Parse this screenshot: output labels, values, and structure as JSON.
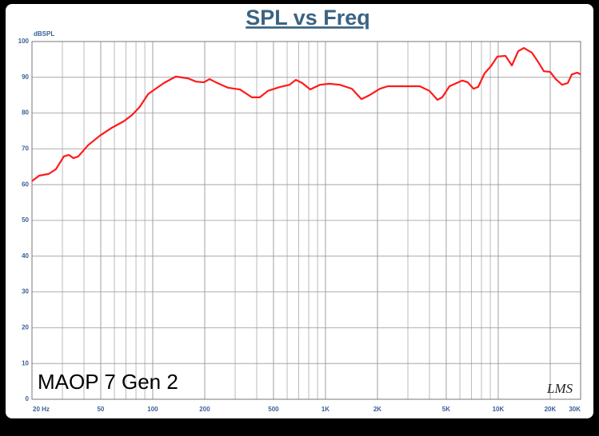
{
  "chart_data": {
    "type": "line",
    "title": "SPL vs Freq",
    "y_label": "dBSPL",
    "annotation": "MAOP 7 Gen 2",
    "logo": "LMS",
    "log_x": true,
    "grid": true,
    "color": "#ff1a1a",
    "x": [
      20,
      22,
      25,
      27.5,
      30.6,
      32.7,
      34.8,
      37.1,
      42.2,
      49.5,
      58,
      68,
      76,
      84,
      94,
      104,
      116,
      136,
      160,
      178,
      198,
      213,
      232,
      272,
      320,
      375,
      417,
      464,
      545,
      619,
      674,
      734,
      816,
      928,
      1055,
      1212,
      1422,
      1615,
      1798,
      2064,
      2296,
      2698,
      3516,
      4000,
      4446,
      4744,
      5224,
      6191,
      6666,
      7191,
      7660,
      8340,
      9080,
      9890,
      11020,
      12000,
      13060,
      14080,
      15660,
      16880,
      18380,
      20000,
      21540,
      23450,
      25290,
      26680,
      28720,
      30000
    ],
    "values": [
      61,
      62.5,
      63,
      64.3,
      67.9,
      68.3,
      67.4,
      67.9,
      71,
      73.7,
      75.9,
      77.7,
      79.5,
      81.7,
      85.3,
      86.8,
      88.4,
      90.2,
      89.7,
      88.8,
      88.6,
      89.5,
      88.6,
      87.1,
      86.6,
      84.4,
      84.4,
      86.2,
      87.3,
      87.9,
      89.3,
      88.4,
      86.6,
      87.9,
      88.2,
      87.9,
      86.8,
      83.9,
      85,
      86.8,
      87.5,
      87.5,
      87.5,
      86.2,
      83.7,
      84.4,
      87.5,
      89.1,
      88.6,
      86.8,
      87.3,
      91.1,
      93.1,
      95.8,
      96,
      93.3,
      97.3,
      98.2,
      96.9,
      94.6,
      91.7,
      91.5,
      89.5,
      87.9,
      88.4,
      90.8,
      91.3,
      90.8
    ],
    "xlim": [
      20,
      30000
    ],
    "ylim": [
      0,
      100
    ],
    "xticks": [
      {
        "value": 20,
        "label": "20 Hz"
      },
      50,
      100,
      200,
      500,
      {
        "value": 1000,
        "label": "1K"
      },
      {
        "value": 2000,
        "label": "2K"
      },
      {
        "value": 5000,
        "label": "5K"
      },
      {
        "value": 10000,
        "label": "10K"
      },
      {
        "value": 20000,
        "label": "20K"
      },
      {
        "value": 30000,
        "label": "30K"
      }
    ],
    "yticks": [
      0,
      10,
      20,
      30,
      40,
      50,
      60,
      70,
      80,
      90,
      100
    ]
  }
}
